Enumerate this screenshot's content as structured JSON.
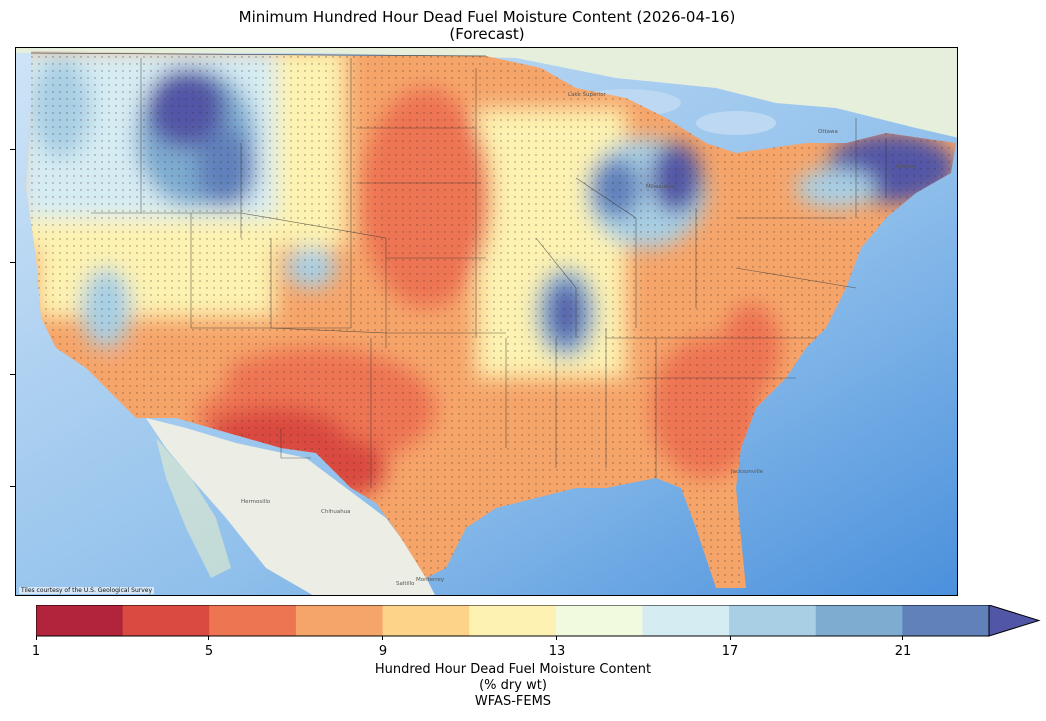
{
  "title": {
    "line1": "Minimum Hundred Hour Dead Fuel Moisture Content (2026-04-16)",
    "line2": "(Forecast)"
  },
  "map": {
    "credit": "Tiles courtesy of the U.S. Geological Survey",
    "place_labels": [
      "Lake Superior",
      "Milwaukee",
      "Ottawa",
      "Boston",
      "Jacksonville",
      "Hermosillo",
      "Chihuahua",
      "Monterrey",
      "Saltillo"
    ]
  },
  "colorbar": {
    "tick_labels": [
      "1",
      "5",
      "9",
      "13",
      "17",
      "21"
    ],
    "label_line1": "Hundred Hour Dead Fuel Moisture Content",
    "label_line2": "(% dry wt)",
    "label_line3": "WFAS-FEMS",
    "extend": "max",
    "colors": [
      "#b2243c",
      "#da4a40",
      "#ee7552",
      "#f6a56a",
      "#fdd38a",
      "#fdf2b1",
      "#f1f9de",
      "#d6ecf3",
      "#a8cfe4",
      "#7eabd0",
      "#6181bb",
      "#5256a6"
    ]
  }
}
